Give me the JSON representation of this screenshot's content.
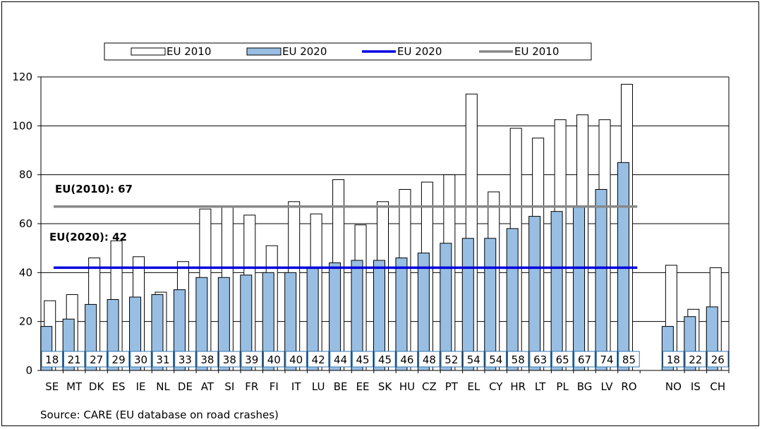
{
  "chart_data": {
    "type": "bar",
    "ylim": [
      0,
      120
    ],
    "yticks": [
      0,
      20,
      40,
      60,
      80,
      100,
      120
    ],
    "grid": true,
    "legend_placement": "top-center",
    "legend": [
      {
        "label": "EU 2010",
        "kind": "bar",
        "color": "#ffffff"
      },
      {
        "label": "EU 2020",
        "kind": "bar",
        "color": "#98bfe3"
      },
      {
        "label": "EU 2020",
        "kind": "line",
        "color": "#0000dd"
      },
      {
        "label": "EU 2010",
        "kind": "line",
        "color": "#888888"
      }
    ],
    "categories": [
      "SE",
      "MT",
      "DK",
      "ES",
      "IE",
      "NL",
      "DE",
      "AT",
      "SI",
      "FR",
      "FI",
      "IT",
      "LU",
      "BE",
      "EE",
      "SK",
      "HU",
      "CZ",
      "PT",
      "EL",
      "CY",
      "HR",
      "LT",
      "PL",
      "BG",
      "LV",
      "RO",
      "NO",
      "IS",
      "CH"
    ],
    "group_break_after": "RO",
    "series": [
      {
        "name": "EU 2010",
        "color": "#ffffff",
        "values": [
          28.5,
          31,
          46,
          53,
          46.5,
          32,
          44.5,
          66,
          67,
          63.5,
          51,
          69,
          64,
          78,
          59.5,
          69,
          74,
          77,
          80,
          113,
          73,
          99,
          95,
          102.5,
          104.5,
          102.5,
          117,
          43,
          25,
          42
        ]
      },
      {
        "name": "EU 2020",
        "color": "#98bfe3",
        "values": [
          18,
          21,
          27,
          29,
          30,
          31,
          33,
          38,
          38,
          39,
          40,
          40,
          42,
          44,
          45,
          45,
          46,
          48,
          52,
          54,
          54,
          58,
          63,
          65,
          67,
          74,
          85,
          18,
          22,
          26
        ]
      }
    ],
    "value_labels": [
      "18",
      "21",
      "27",
      "29",
      "30",
      "31",
      "33",
      "38",
      "38",
      "39",
      "40",
      "40",
      "42",
      "44",
      "45",
      "45",
      "46",
      "48",
      "52",
      "54",
      "54",
      "58",
      "63",
      "65",
      "67",
      "74",
      "85",
      "18",
      "22",
      "26"
    ],
    "reference_lines": [
      {
        "name": "EU 2010",
        "value": 67,
        "color": "#888888",
        "label": "EU(2010): 67"
      },
      {
        "name": "EU 2020",
        "value": 42,
        "color": "#0000dd",
        "label": "EU(2020): 42"
      }
    ],
    "source": "Source: CARE (EU database on road crashes)"
  }
}
